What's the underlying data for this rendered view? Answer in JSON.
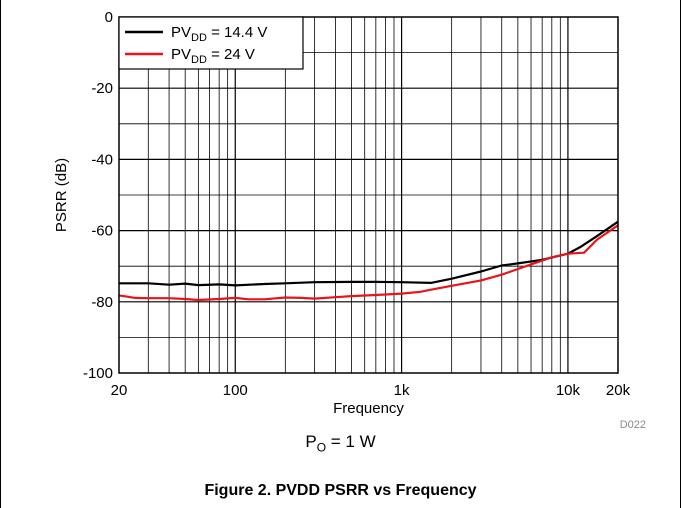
{
  "chart_data": {
    "type": "line",
    "xscale": "log",
    "xlabel": "Frequency",
    "ylabel": "PSRR (dB)",
    "xlim": [
      20,
      20000
    ],
    "ylim": [
      -100,
      0
    ],
    "grid": true,
    "legend_position": "top-left",
    "x_ticks": [
      {
        "value": 20,
        "label": "20"
      },
      {
        "value": 100,
        "label": "100"
      },
      {
        "value": 1000,
        "label": "1k"
      },
      {
        "value": 10000,
        "label": "10k"
      },
      {
        "value": 20000,
        "label": "20k"
      }
    ],
    "y_ticks": [
      {
        "value": 0,
        "label": "0"
      },
      {
        "value": -20,
        "label": "-20"
      },
      {
        "value": -40,
        "label": "-40"
      },
      {
        "value": -60,
        "label": "-60"
      },
      {
        "value": -80,
        "label": "-80"
      },
      {
        "value": -100,
        "label": "-100"
      }
    ],
    "series": [
      {
        "legend_prefix": "PV",
        "legend_sub": "DD",
        "legend_suffix": " = 14.4 V",
        "color": "#000000",
        "points": [
          [
            20,
            -74.8
          ],
          [
            30,
            -74.8
          ],
          [
            40,
            -75.2
          ],
          [
            50,
            -74.9
          ],
          [
            60,
            -75.3
          ],
          [
            80,
            -75.1
          ],
          [
            100,
            -75.4
          ],
          [
            150,
            -75.0
          ],
          [
            200,
            -74.8
          ],
          [
            300,
            -74.5
          ],
          [
            500,
            -74.4
          ],
          [
            700,
            -74.4
          ],
          [
            1000,
            -74.5
          ],
          [
            1500,
            -74.7
          ],
          [
            2000,
            -73.5
          ],
          [
            3000,
            -71.5
          ],
          [
            4000,
            -69.8
          ],
          [
            5000,
            -69.2
          ],
          [
            7000,
            -68.2
          ],
          [
            10000,
            -66.5
          ],
          [
            12000,
            -64.5
          ],
          [
            15000,
            -61.5
          ],
          [
            20000,
            -57.5
          ]
        ]
      },
      {
        "legend_prefix": "PV",
        "legend_sub": "DD",
        "legend_suffix": " = 24 V",
        "color": "#e8141b",
        "points": [
          [
            20,
            -78.2
          ],
          [
            25,
            -78.9
          ],
          [
            30,
            -79.0
          ],
          [
            40,
            -79.0
          ],
          [
            50,
            -79.2
          ],
          [
            60,
            -79.5
          ],
          [
            80,
            -79.2
          ],
          [
            100,
            -78.9
          ],
          [
            120,
            -79.3
          ],
          [
            150,
            -79.3
          ],
          [
            200,
            -78.8
          ],
          [
            250,
            -78.9
          ],
          [
            300,
            -79.1
          ],
          [
            400,
            -78.7
          ],
          [
            500,
            -78.4
          ],
          [
            700,
            -78.1
          ],
          [
            1000,
            -77.7
          ],
          [
            1300,
            -77.2
          ],
          [
            1500,
            -76.6
          ],
          [
            2000,
            -75.5
          ],
          [
            3000,
            -74.0
          ],
          [
            4000,
            -72.4
          ],
          [
            5000,
            -70.8
          ],
          [
            6000,
            -69.5
          ],
          [
            8000,
            -67.5
          ],
          [
            10000,
            -66.5
          ],
          [
            12500,
            -66.2
          ],
          [
            15000,
            -62.5
          ],
          [
            20000,
            -58.5
          ]
        ]
      }
    ],
    "code_label": "D022"
  },
  "condition": {
    "prefix": "P",
    "sub": "O",
    "suffix": " = 1 W"
  },
  "caption": "Figure 2. PVDD PSRR vs Frequency"
}
